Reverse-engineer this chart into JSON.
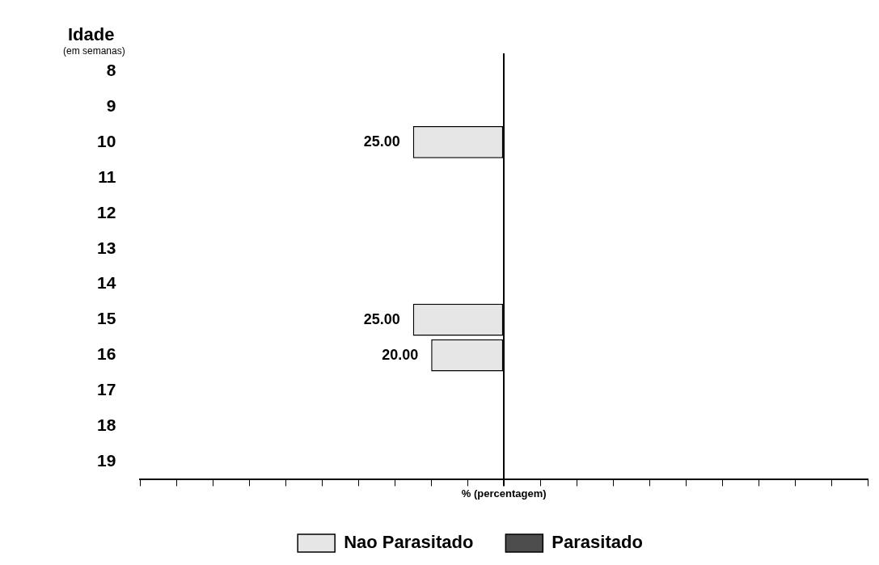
{
  "chart_data": {
    "type": "bar",
    "orientation": "horizontal",
    "stacked": true,
    "ylabel": "Idade",
    "xlabel": "% (percentagem)",
    "annotations": [
      "(em semanas)"
    ],
    "categories": [
      "8",
      "9",
      "10",
      "11",
      "12",
      "13",
      "14",
      "15",
      "16",
      "17",
      "18",
      "19"
    ],
    "series": [
      {
        "name": "Nao Parasitado",
        "color": "#e6e6e6",
        "values": [
          null,
          null,
          25,
          null,
          null,
          null,
          null,
          25,
          20,
          null,
          null,
          null
        ],
        "value_labels": [
          null,
          null,
          "25.00",
          null,
          null,
          null,
          null,
          "25.00",
          "20.00",
          null,
          null,
          null
        ]
      },
      {
        "name": "Parasitado",
        "color": "#4d4d4d",
        "values": [
          null,
          null,
          null,
          null,
          null,
          null,
          null,
          null,
          null,
          null,
          null,
          null
        ]
      }
    ],
    "tick_labels": "y",
    "grid": false,
    "legend": "bottom"
  }
}
